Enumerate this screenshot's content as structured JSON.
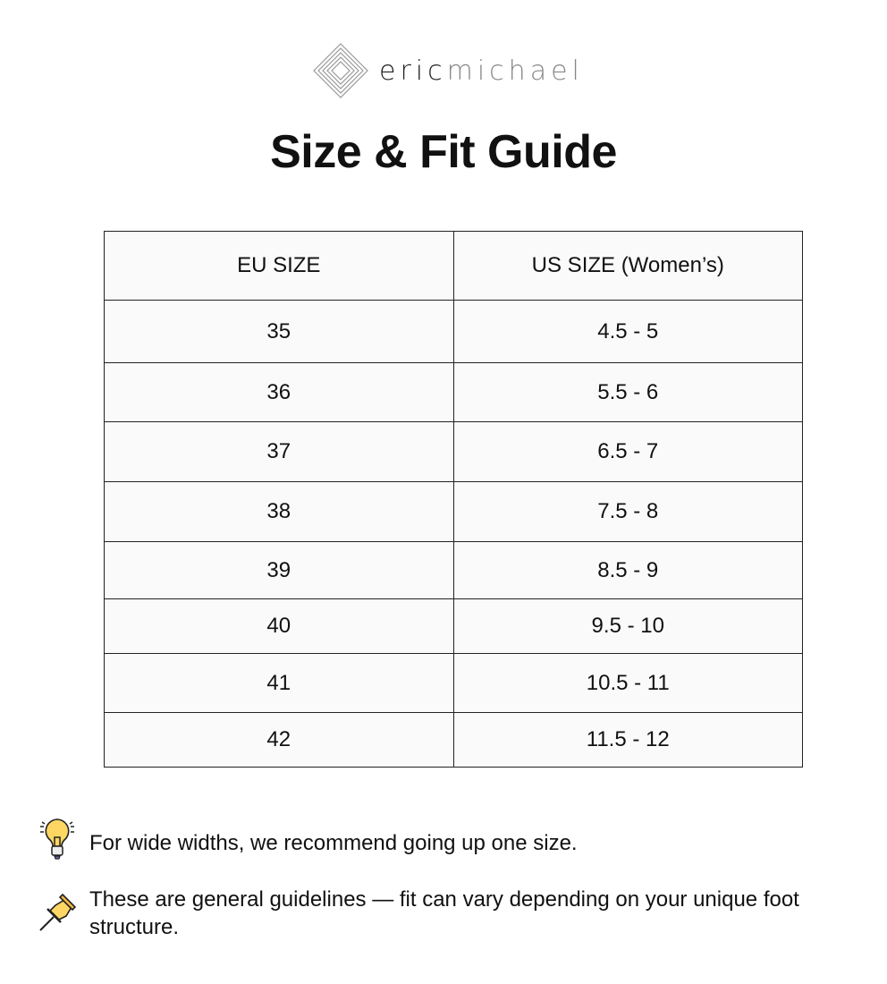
{
  "logo": {
    "part1": "eric",
    "part2": "michael"
  },
  "title": "Size & Fit Guide",
  "table": {
    "headers": [
      "EU SIZE",
      "US SIZE (Women’s)"
    ],
    "rows": [
      [
        "35",
        "4.5 - 5"
      ],
      [
        "36",
        "5.5 - 6"
      ],
      [
        "37",
        "6.5 - 7"
      ],
      [
        "38",
        "7.5 - 8"
      ],
      [
        "39",
        "8.5 - 9"
      ],
      [
        "40",
        "9.5 - 10"
      ],
      [
        "41",
        "10.5 - 11"
      ],
      [
        "42",
        "11.5 - 12"
      ]
    ]
  },
  "notes": [
    {
      "icon": "lightbulb-icon",
      "text": "For wide widths, we recommend going up one size."
    },
    {
      "icon": "pushpin-icon",
      "text": "These are general guidelines — fit can vary depending on your unique foot structure."
    }
  ]
}
